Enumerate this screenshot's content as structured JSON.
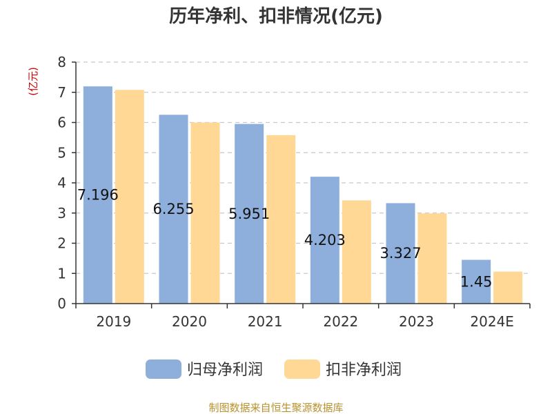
{
  "chart_data": {
    "type": "bar",
    "title": "历年净利、扣非情况(亿元)",
    "ylabel": "(亿元)",
    "xlabel": "",
    "categories": [
      "2019",
      "2020",
      "2021",
      "2022",
      "2023",
      "2024E"
    ],
    "series": [
      {
        "name": "归母净利润",
        "color": "#8eaedb",
        "values": [
          7.196,
          6.255,
          5.951,
          4.203,
          3.327,
          1.45
        ]
      },
      {
        "name": "扣非净利润",
        "color": "#ffd896",
        "values": [
          7.08,
          6.0,
          5.58,
          3.42,
          2.99,
          1.06
        ]
      }
    ],
    "data_labels": [
      "7.196",
      "6.255",
      "5.951",
      "4.203",
      "3.327",
      "1.45"
    ],
    "ylim": [
      0,
      8
    ],
    "yticks": [
      "0",
      "1",
      "2",
      "3",
      "4",
      "5",
      "6",
      "7",
      "8"
    ],
    "grid": true,
    "legend_position": "bottom"
  },
  "footer": {
    "source": "制图数据来自恒生聚源数据库"
  }
}
